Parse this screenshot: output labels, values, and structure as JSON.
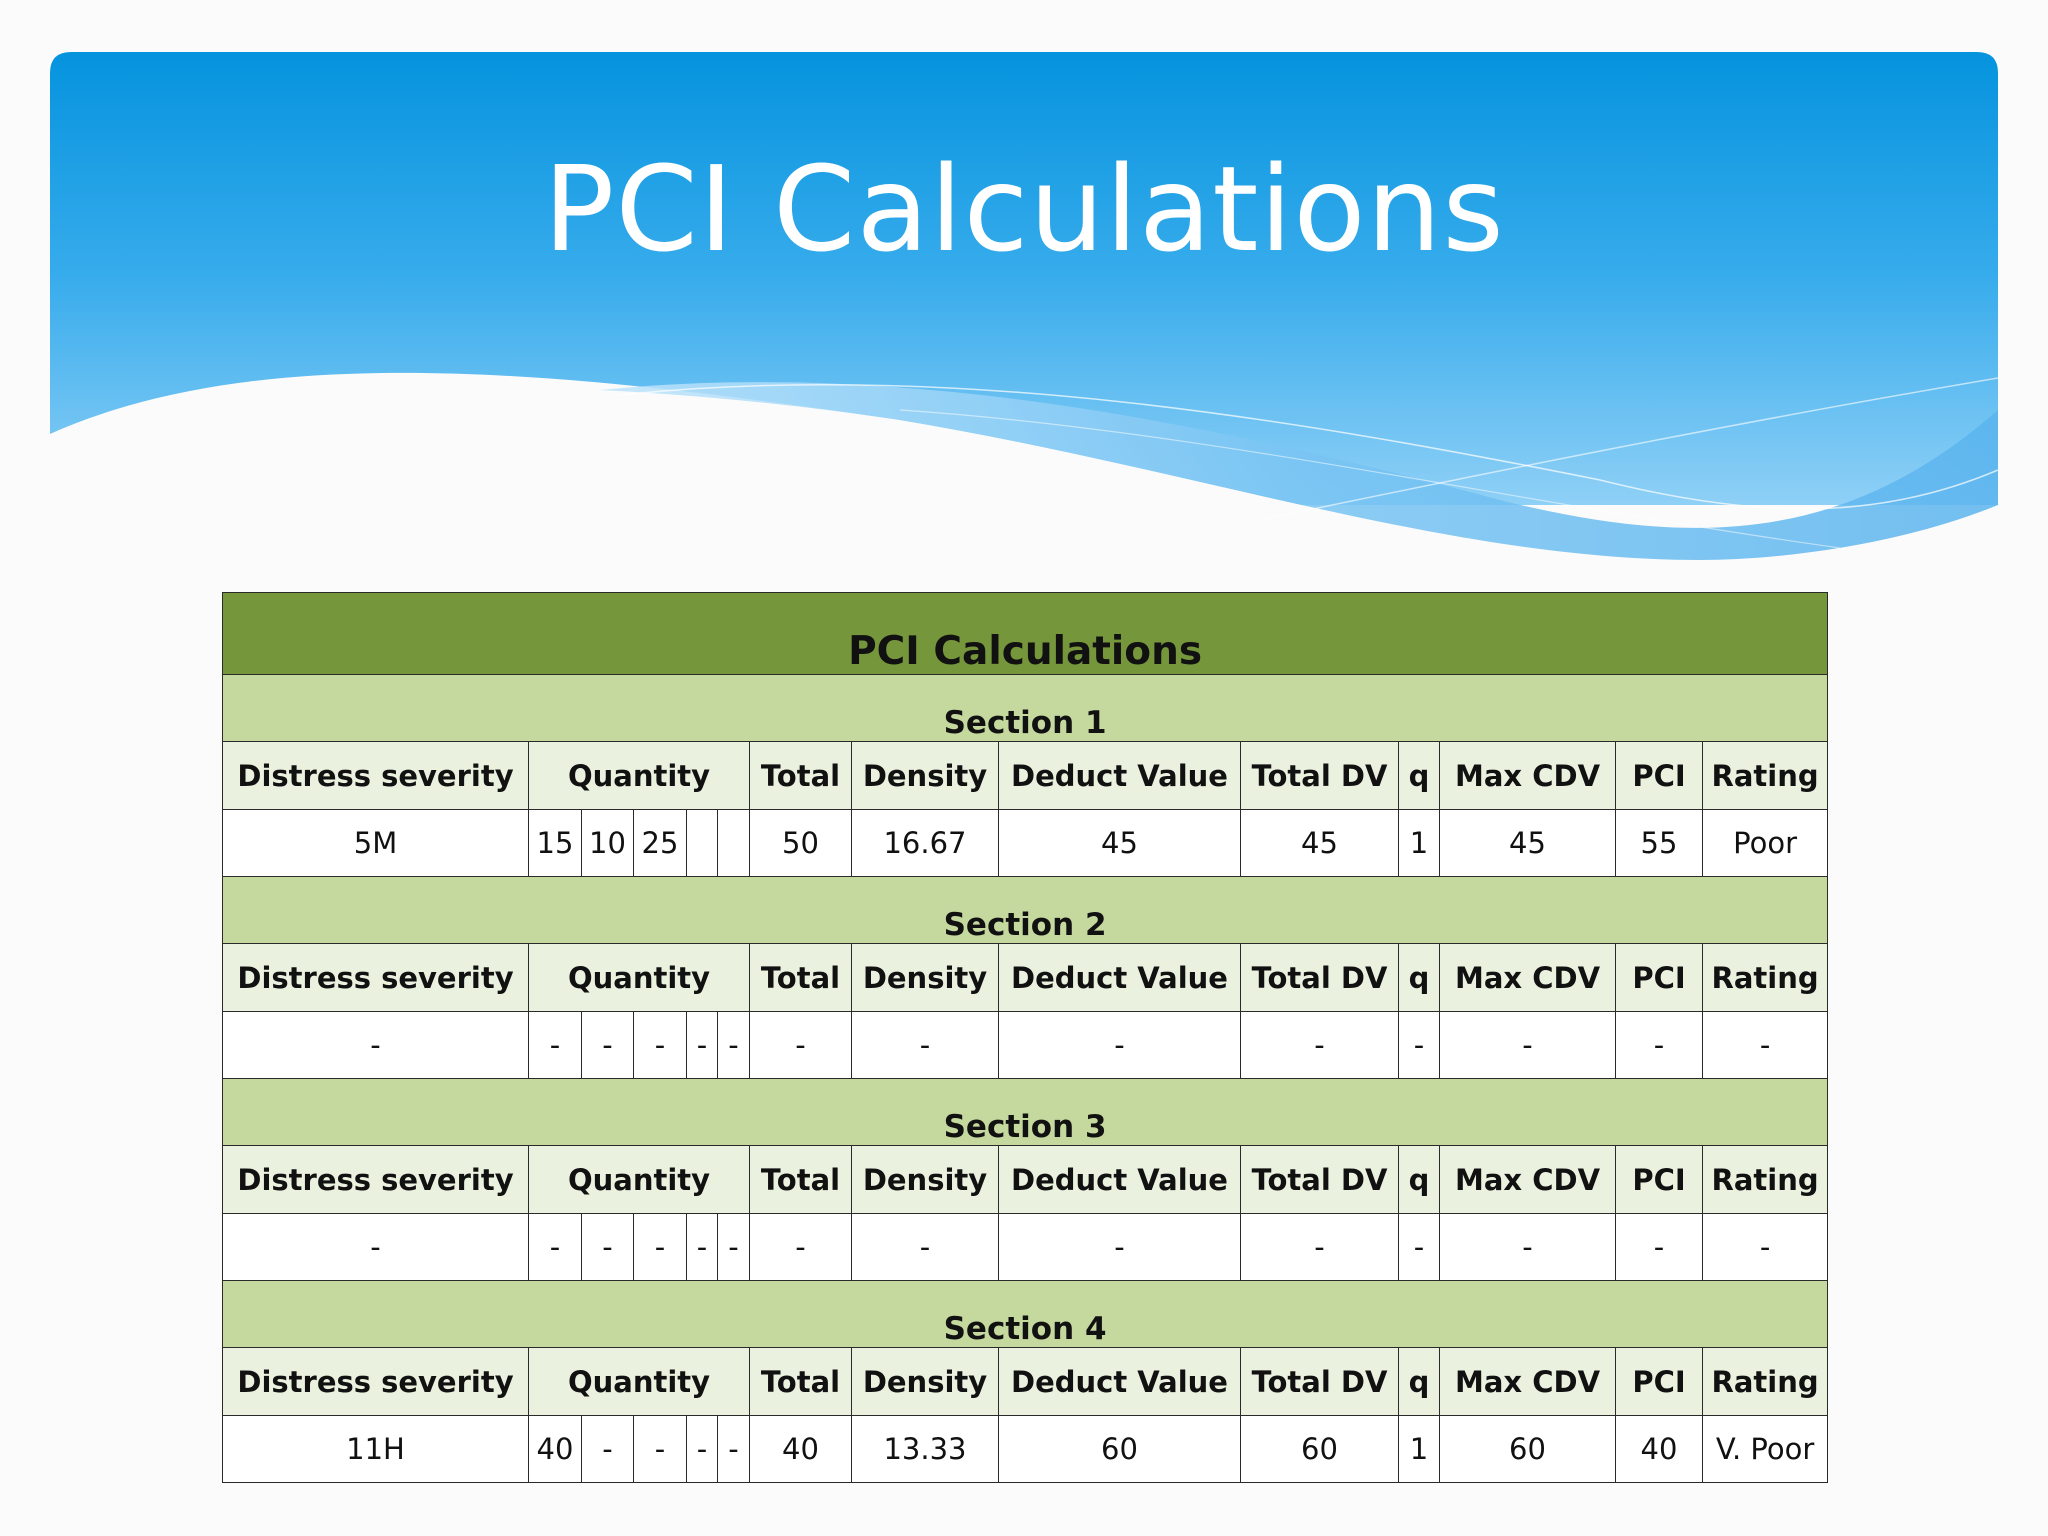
{
  "slide": {
    "title": "PCI Calculations",
    "colors": {
      "banner_top": "#0696e0",
      "banner_bottom": "#7cc7f4",
      "table_title": "#76963b",
      "section_band": "#c5d99f",
      "header_row": "#ebf1df"
    }
  },
  "table": {
    "title": "PCI Calculations",
    "columns": [
      "Distress severity",
      "Quantity",
      "Total",
      "Density",
      "Deduct Value",
      "Total DV",
      "q",
      "Max CDV",
      "PCI",
      "Rating"
    ],
    "sections": [
      {
        "name": "Section 1",
        "row": {
          "distress": "5M",
          "quantities": [
            "15",
            "10",
            "25",
            "",
            ""
          ],
          "total": "50",
          "density": "16.67",
          "deduct_value": "45",
          "total_dv": "45",
          "q": "1",
          "max_cdv": "45",
          "pci": "55",
          "rating": "Poor"
        }
      },
      {
        "name": "Section 2",
        "row": {
          "distress": "-",
          "quantities": [
            "-",
            "-",
            "-",
            "-",
            "-"
          ],
          "total": "-",
          "density": "-",
          "deduct_value": "-",
          "total_dv": "-",
          "q": "-",
          "max_cdv": "-",
          "pci": "-",
          "rating": "-"
        }
      },
      {
        "name": "Section 3",
        "row": {
          "distress": "-",
          "quantities": [
            "-",
            "-",
            "-",
            "-",
            "-"
          ],
          "total": "-",
          "density": "-",
          "deduct_value": "-",
          "total_dv": "-",
          "q": "-",
          "max_cdv": "-",
          "pci": "-",
          "rating": "-"
        }
      },
      {
        "name": "Section 4",
        "row": {
          "distress": "11H",
          "quantities": [
            "40",
            "-",
            "-",
            "-",
            "-"
          ],
          "total": "40",
          "density": "13.33",
          "deduct_value": "60",
          "total_dv": "60",
          "q": "1",
          "max_cdv": "60",
          "pci": "40",
          "rating": "V. Poor"
        }
      }
    ]
  }
}
